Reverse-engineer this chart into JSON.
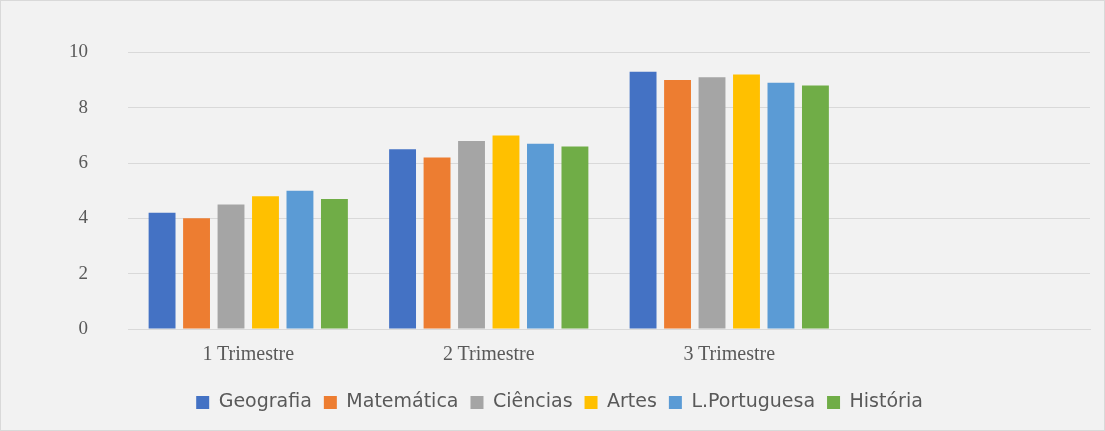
{
  "chart_data": {
    "type": "bar",
    "categories": [
      "1 Trimestre",
      "2 Trimestre",
      "3 Trimestre",
      null
    ],
    "series": [
      {
        "name": "Geografia",
        "color": "#4472c4",
        "values": [
          4.2,
          6.5,
          9.3,
          null
        ]
      },
      {
        "name": "Matemática",
        "color": "#ed7d31",
        "values": [
          4.0,
          6.2,
          9.0,
          null
        ]
      },
      {
        "name": "Ciências",
        "color": "#a5a5a5",
        "values": [
          4.5,
          6.8,
          9.1,
          null
        ]
      },
      {
        "name": "Artes",
        "color": "#ffc000",
        "values": [
          4.8,
          7.0,
          9.2,
          null
        ]
      },
      {
        "name": "L.Portuguesa",
        "color": "#5b9bd5",
        "values": [
          5.0,
          6.7,
          8.9,
          null
        ]
      },
      {
        "name": "História",
        "color": "#70ad47",
        "values": [
          4.7,
          6.6,
          8.8,
          null
        ]
      }
    ],
    "ylim": [
      0,
      10
    ],
    "yticks": [
      0,
      2,
      4,
      6,
      8,
      10
    ],
    "grid": "y",
    "legend": "bottom"
  }
}
